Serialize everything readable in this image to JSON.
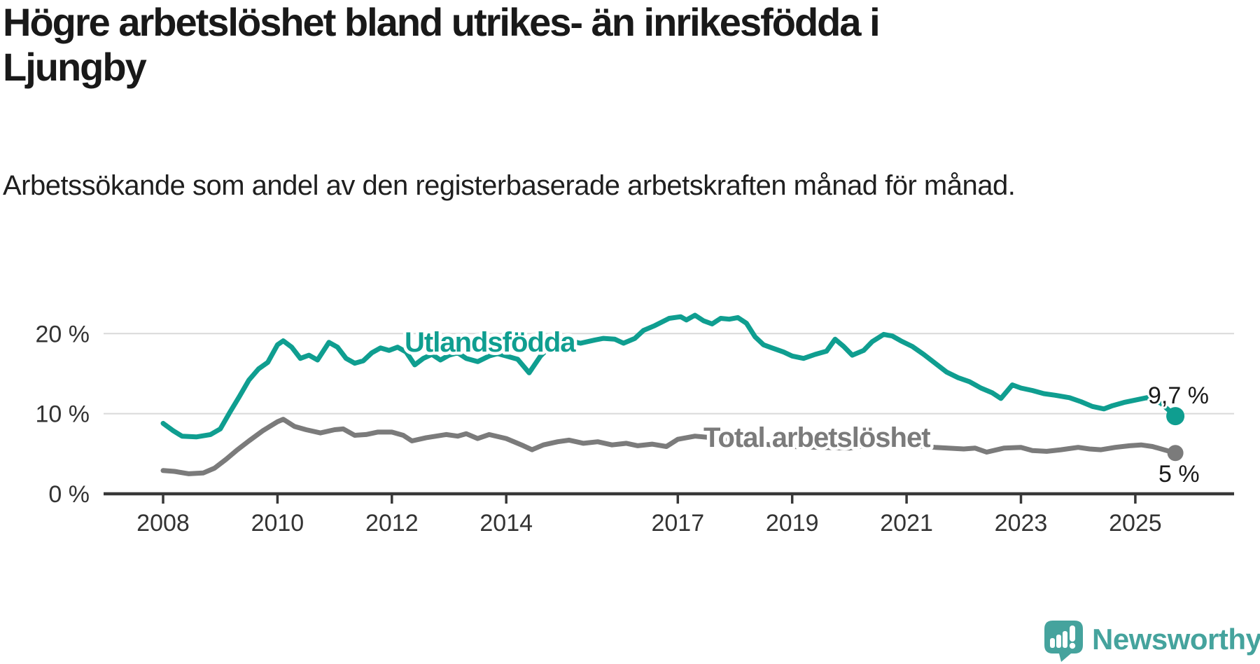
{
  "header": {
    "title": "Högre arbetslöshet bland utrikes- än inrikesfödda i Ljungby",
    "subtitle": "Arbetssökande som andel av den registerbaserade arbetskraften månad för månad."
  },
  "footer": {
    "brand": "Newsworthy"
  },
  "colors": {
    "series_foreign_born": "#0f9e90",
    "series_total": "#7b7b7b",
    "axis": "#383838",
    "grid": "#d9d9d9",
    "tick_text": "#333333",
    "value_text": "#1a1a1a",
    "brand": "#45a39d",
    "title_text": "#191919"
  },
  "chart_data": {
    "type": "line",
    "title": "Högre arbetslöshet bland utrikes- än inrikesfödda i Ljungby",
    "subtitle": "Arbetssökande som andel av den registerbaserade arbetskraften månad för månad.",
    "unit": "%",
    "grid": "horizontal-only",
    "legend_position": "inline-labels",
    "x_axis": {
      "range": [
        2008,
        2025.7
      ],
      "ticks": [
        2008,
        2010,
        2012,
        2014,
        2017,
        2019,
        2021,
        2023,
        2025
      ]
    },
    "y_axis": {
      "range": [
        0,
        22.5
      ],
      "ticks": [
        {
          "label": "0 %",
          "value": 0
        },
        {
          "label": "10 %",
          "value": 10
        },
        {
          "label": "20 %",
          "value": 20
        }
      ]
    },
    "series": [
      {
        "name": "Utlandsfödda",
        "color": "#0f9e90",
        "end_label": "9,7 %",
        "end_value": 9.7,
        "points": [
          [
            2008.0,
            8.8
          ],
          [
            2008.17,
            7.9
          ],
          [
            2008.33,
            7.2
          ],
          [
            2008.58,
            7.1
          ],
          [
            2008.83,
            7.4
          ],
          [
            2009.0,
            8.1
          ],
          [
            2009.17,
            10.2
          ],
          [
            2009.33,
            12.1
          ],
          [
            2009.5,
            14.2
          ],
          [
            2009.67,
            15.6
          ],
          [
            2009.83,
            16.4
          ],
          [
            2010.0,
            18.6
          ],
          [
            2010.1,
            19.1
          ],
          [
            2010.25,
            18.3
          ],
          [
            2010.4,
            16.9
          ],
          [
            2010.55,
            17.3
          ],
          [
            2010.7,
            16.7
          ],
          [
            2010.9,
            18.9
          ],
          [
            2011.05,
            18.3
          ],
          [
            2011.2,
            16.9
          ],
          [
            2011.35,
            16.3
          ],
          [
            2011.5,
            16.6
          ],
          [
            2011.65,
            17.6
          ],
          [
            2011.8,
            18.2
          ],
          [
            2011.95,
            17.9
          ],
          [
            2012.1,
            18.3
          ],
          [
            2012.25,
            17.7
          ],
          [
            2012.4,
            16.1
          ],
          [
            2012.55,
            16.9
          ],
          [
            2012.7,
            17.4
          ],
          [
            2012.85,
            16.7
          ],
          [
            2013.0,
            17.3
          ],
          [
            2013.15,
            17.6
          ],
          [
            2013.3,
            16.9
          ],
          [
            2013.5,
            16.5
          ],
          [
            2013.7,
            17.2
          ],
          [
            2013.85,
            17.5
          ],
          [
            2014.0,
            17.2
          ],
          [
            2014.2,
            16.8
          ],
          [
            2014.4,
            15.1
          ],
          [
            2014.6,
            17.2
          ],
          [
            2014.85,
            19.0
          ],
          [
            2015.1,
            19.1
          ],
          [
            2015.3,
            18.8
          ],
          [
            2015.55,
            19.2
          ],
          [
            2015.7,
            19.4
          ],
          [
            2015.9,
            19.3
          ],
          [
            2016.05,
            18.8
          ],
          [
            2016.25,
            19.4
          ],
          [
            2016.4,
            20.4
          ],
          [
            2016.6,
            21.0
          ],
          [
            2016.85,
            21.9
          ],
          [
            2017.05,
            22.1
          ],
          [
            2017.15,
            21.7
          ],
          [
            2017.3,
            22.3
          ],
          [
            2017.45,
            21.6
          ],
          [
            2017.6,
            21.2
          ],
          [
            2017.75,
            21.9
          ],
          [
            2017.9,
            21.8
          ],
          [
            2018.05,
            22.0
          ],
          [
            2018.2,
            21.3
          ],
          [
            2018.35,
            19.6
          ],
          [
            2018.5,
            18.6
          ],
          [
            2018.65,
            18.2
          ],
          [
            2018.85,
            17.7
          ],
          [
            2019.0,
            17.2
          ],
          [
            2019.2,
            16.9
          ],
          [
            2019.4,
            17.4
          ],
          [
            2019.6,
            17.8
          ],
          [
            2019.75,
            19.3
          ],
          [
            2019.9,
            18.4
          ],
          [
            2020.05,
            17.3
          ],
          [
            2020.25,
            17.9
          ],
          [
            2020.4,
            19.0
          ],
          [
            2020.6,
            19.9
          ],
          [
            2020.75,
            19.7
          ],
          [
            2020.9,
            19.1
          ],
          [
            2021.1,
            18.4
          ],
          [
            2021.3,
            17.4
          ],
          [
            2021.5,
            16.3
          ],
          [
            2021.7,
            15.2
          ],
          [
            2021.9,
            14.5
          ],
          [
            2022.1,
            14.0
          ],
          [
            2022.3,
            13.2
          ],
          [
            2022.5,
            12.6
          ],
          [
            2022.65,
            11.9
          ],
          [
            2022.85,
            13.6
          ],
          [
            2023.0,
            13.2
          ],
          [
            2023.2,
            12.9
          ],
          [
            2023.4,
            12.5
          ],
          [
            2023.6,
            12.3
          ],
          [
            2023.85,
            12.0
          ],
          [
            2024.05,
            11.5
          ],
          [
            2024.25,
            10.9
          ],
          [
            2024.45,
            10.6
          ],
          [
            2024.6,
            11.0
          ],
          [
            2024.8,
            11.4
          ],
          [
            2025.0,
            11.7
          ],
          [
            2025.2,
            12.0
          ],
          [
            2025.45,
            11.3
          ],
          [
            2025.7,
            9.7
          ]
        ]
      },
      {
        "name": "Total arbetslöshet",
        "color": "#7b7b7b",
        "end_label": "5 %",
        "end_value": 5,
        "points": [
          [
            2008.0,
            2.9
          ],
          [
            2008.2,
            2.8
          ],
          [
            2008.45,
            2.5
          ],
          [
            2008.7,
            2.6
          ],
          [
            2008.9,
            3.2
          ],
          [
            2009.1,
            4.3
          ],
          [
            2009.3,
            5.5
          ],
          [
            2009.5,
            6.6
          ],
          [
            2009.75,
            7.9
          ],
          [
            2010.0,
            9.0
          ],
          [
            2010.1,
            9.3
          ],
          [
            2010.3,
            8.4
          ],
          [
            2010.5,
            8.0
          ],
          [
            2010.75,
            7.6
          ],
          [
            2011.0,
            8.0
          ],
          [
            2011.15,
            8.1
          ],
          [
            2011.35,
            7.3
          ],
          [
            2011.55,
            7.4
          ],
          [
            2011.75,
            7.7
          ],
          [
            2012.0,
            7.7
          ],
          [
            2012.2,
            7.3
          ],
          [
            2012.35,
            6.6
          ],
          [
            2012.6,
            7.0
          ],
          [
            2012.95,
            7.4
          ],
          [
            2013.15,
            7.2
          ],
          [
            2013.3,
            7.5
          ],
          [
            2013.5,
            6.9
          ],
          [
            2013.7,
            7.4
          ],
          [
            2014.0,
            6.9
          ],
          [
            2014.3,
            6.0
          ],
          [
            2014.45,
            5.5
          ],
          [
            2014.65,
            6.1
          ],
          [
            2014.9,
            6.5
          ],
          [
            2015.1,
            6.7
          ],
          [
            2015.35,
            6.3
          ],
          [
            2015.6,
            6.5
          ],
          [
            2015.85,
            6.1
          ],
          [
            2016.1,
            6.3
          ],
          [
            2016.3,
            6.0
          ],
          [
            2016.55,
            6.2
          ],
          [
            2016.8,
            5.9
          ],
          [
            2017.0,
            6.8
          ],
          [
            2017.3,
            7.2
          ],
          [
            2017.6,
            7.0
          ],
          [
            2018.0,
            6.6
          ],
          [
            2018.5,
            6.2
          ],
          [
            2019.0,
            5.9
          ],
          [
            2019.5,
            5.8
          ],
          [
            2020.0,
            5.7
          ],
          [
            2020.5,
            6.3
          ],
          [
            2021.0,
            6.1
          ],
          [
            2021.5,
            5.8
          ],
          [
            2022.0,
            5.6
          ],
          [
            2022.2,
            5.7
          ],
          [
            2022.4,
            5.2
          ],
          [
            2022.7,
            5.7
          ],
          [
            2023.0,
            5.8
          ],
          [
            2023.2,
            5.4
          ],
          [
            2023.45,
            5.3
          ],
          [
            2023.7,
            5.5
          ],
          [
            2024.0,
            5.8
          ],
          [
            2024.2,
            5.6
          ],
          [
            2024.4,
            5.5
          ],
          [
            2024.65,
            5.8
          ],
          [
            2024.9,
            6.0
          ],
          [
            2025.1,
            6.1
          ],
          [
            2025.3,
            5.9
          ],
          [
            2025.7,
            5.1
          ]
        ]
      }
    ]
  }
}
